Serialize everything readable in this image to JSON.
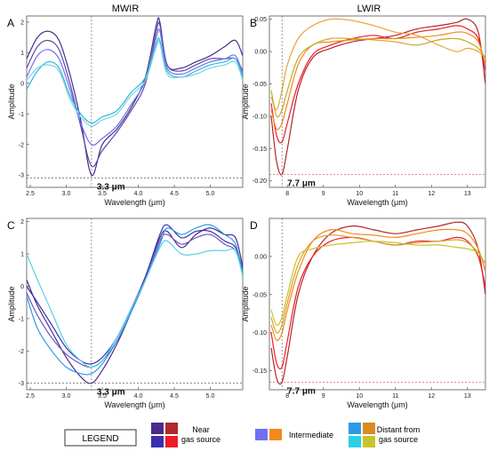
{
  "column_titles": [
    "MWIR",
    "LWIR"
  ],
  "legend": {
    "title": "LEGEND",
    "groups": [
      {
        "label_lines": [
          "Near",
          "gas source"
        ],
        "colors": [
          "#4a2a8a",
          "#b3262c",
          "#3b2fb0",
          "#ee1c24"
        ]
      },
      {
        "label_lines": [
          "Intermediate"
        ],
        "colors": [
          "#6f6ff0",
          "#f28a1a"
        ]
      },
      {
        "label_lines": [
          "Distant from",
          "gas source"
        ],
        "colors": [
          "#2c9be6",
          "#d98c1f",
          "#2ad0e6",
          "#c8c42a"
        ]
      }
    ]
  },
  "chart_data": [
    {
      "panel": "A",
      "type": "line",
      "xlabel": "Wavelength (μm)",
      "ylabel": "Amplitude",
      "xlim": [
        2.45,
        5.45
      ],
      "ylim": [
        -3.4,
        2.2
      ],
      "xticks": [
        2.5,
        3.0,
        3.5,
        4.0,
        4.5,
        5.0
      ],
      "xtick_labels": [
        "2.5",
        "3.0",
        "3.5",
        "4.0",
        "4.5",
        "5.0"
      ],
      "yticks": [
        -3,
        -2,
        -1,
        0,
        1,
        2
      ],
      "ytick_labels": [
        "-3",
        "-2",
        "-1",
        "0",
        "1",
        "2"
      ],
      "annotation": {
        "text": "3.3 μm",
        "x": 3.35,
        "y": -3.1
      },
      "series": [
        {
          "color": "#4a2a8a",
          "x": [
            2.45,
            2.6,
            2.75,
            2.9,
            3.05,
            3.2,
            3.35,
            3.5,
            3.7,
            3.9,
            4.1,
            4.25,
            4.3,
            4.4,
            4.6,
            4.8,
            5.0,
            5.2,
            5.35,
            5.45
          ],
          "y": [
            0.8,
            1.5,
            1.7,
            1.4,
            0.3,
            -1.2,
            -3.0,
            -2.0,
            -1.5,
            -0.8,
            0.2,
            1.9,
            2.0,
            0.6,
            0.5,
            0.7,
            0.9,
            1.2,
            1.4,
            0.9
          ]
        },
        {
          "color": "#5a4aa8",
          "x": [
            2.45,
            2.6,
            2.75,
            2.9,
            3.05,
            3.2,
            3.35,
            3.5,
            3.7,
            3.9,
            4.1,
            4.25,
            4.3,
            4.4,
            4.6,
            4.8,
            5.0,
            5.2,
            5.35,
            5.45
          ],
          "y": [
            0.5,
            1.2,
            1.4,
            1.1,
            0.0,
            -1.4,
            -2.7,
            -2.2,
            -1.6,
            -0.9,
            0.0,
            1.7,
            1.9,
            0.6,
            0.4,
            0.6,
            0.8,
            0.8,
            0.8,
            0.4
          ]
        },
        {
          "color": "#6f6ff0",
          "x": [
            2.45,
            2.6,
            2.75,
            2.9,
            3.05,
            3.2,
            3.35,
            3.5,
            3.7,
            3.9,
            4.1,
            4.25,
            4.3,
            4.4,
            4.6,
            4.8,
            5.0,
            5.2,
            5.35,
            5.45
          ],
          "y": [
            0.2,
            0.9,
            1.1,
            0.8,
            -0.2,
            -1.3,
            -2.0,
            -1.8,
            -1.4,
            -0.7,
            0.1,
            1.5,
            1.7,
            0.5,
            0.3,
            0.5,
            0.7,
            0.8,
            0.9,
            0.3
          ]
        },
        {
          "color": "#2ab8d8",
          "x": [
            2.45,
            2.6,
            2.75,
            2.9,
            3.05,
            3.2,
            3.35,
            3.5,
            3.7,
            3.9,
            4.1,
            4.25,
            4.3,
            4.4,
            4.6,
            4.8,
            5.0,
            5.2,
            5.35,
            5.45
          ],
          "y": [
            -0.2,
            0.4,
            0.7,
            0.5,
            -0.4,
            -1.0,
            -1.3,
            -1.1,
            -0.9,
            -0.3,
            0.2,
            1.3,
            1.4,
            0.4,
            0.2,
            0.4,
            0.6,
            0.7,
            0.8,
            0.2
          ]
        },
        {
          "color": "#7fd2e0",
          "x": [
            2.45,
            2.6,
            2.75,
            2.9,
            3.05,
            3.2,
            3.35,
            3.5,
            3.7,
            3.9,
            4.1,
            4.25,
            4.3,
            4.4,
            4.6,
            4.8,
            5.0,
            5.2,
            5.35,
            5.45
          ],
          "y": [
            0.1,
            0.5,
            0.6,
            0.4,
            -0.5,
            -1.1,
            -1.4,
            -1.2,
            -1.0,
            -0.4,
            0.1,
            1.2,
            1.3,
            0.3,
            0.2,
            0.3,
            0.5,
            0.6,
            0.7,
            0.1
          ]
        }
      ]
    },
    {
      "panel": "B",
      "type": "line",
      "xlabel": "Wavelength (μm)",
      "ylabel": "Amplitude",
      "xlim": [
        7.5,
        13.5
      ],
      "ylim": [
        -0.21,
        0.055
      ],
      "xticks": [
        8,
        9,
        10,
        11,
        12,
        13
      ],
      "xtick_labels": [
        "8",
        "9",
        "10",
        "11",
        "12",
        "13"
      ],
      "yticks": [
        -0.2,
        -0.15,
        -0.1,
        -0.05,
        0.0,
        0.05
      ],
      "ytick_labels": [
        "-0.20",
        "-0.15",
        "-0.10",
        "-0.05",
        "0.00",
        "0.05"
      ],
      "annotation": {
        "text": "7.7 μm",
        "x": 7.85,
        "y": -0.19
      },
      "series": [
        {
          "color": "#b3262c",
          "x": [
            7.55,
            7.7,
            7.85,
            8.0,
            8.3,
            8.7,
            9.2,
            9.8,
            10.4,
            11.0,
            11.6,
            12.2,
            12.7,
            13.0,
            13.3,
            13.5
          ],
          "y": [
            -0.1,
            -0.17,
            -0.19,
            -0.15,
            -0.06,
            -0.01,
            0.005,
            0.015,
            0.02,
            0.025,
            0.035,
            0.04,
            0.045,
            0.05,
            0.03,
            -0.05
          ]
        },
        {
          "color": "#ee1c24",
          "x": [
            7.55,
            7.7,
            7.85,
            8.0,
            8.3,
            8.7,
            9.2,
            9.8,
            10.4,
            11.0,
            11.6,
            12.2,
            12.7,
            13.0,
            13.3,
            13.5
          ],
          "y": [
            -0.08,
            -0.13,
            -0.14,
            -0.11,
            -0.05,
            -0.005,
            0.01,
            0.02,
            0.025,
            0.02,
            0.03,
            0.035,
            0.04,
            0.035,
            0.02,
            -0.03
          ]
        },
        {
          "color": "#f28a1a",
          "x": [
            7.55,
            7.7,
            7.85,
            8.0,
            8.3,
            8.7,
            9.2,
            9.8,
            10.4,
            11.0,
            11.6,
            12.2,
            12.7,
            13.0,
            13.3,
            13.5
          ],
          "y": [
            -0.09,
            -0.12,
            -0.11,
            -0.08,
            -0.02,
            0.01,
            0.015,
            0.018,
            0.02,
            0.02,
            0.022,
            0.025,
            0.03,
            0.028,
            0.015,
            -0.02
          ]
        },
        {
          "color": "#e8a33a",
          "x": [
            7.55,
            7.7,
            7.85,
            8.0,
            8.3,
            8.7,
            9.2,
            9.8,
            10.4,
            11.0,
            11.6,
            12.2,
            12.7,
            13.0,
            13.3,
            13.5
          ],
          "y": [
            -0.07,
            -0.09,
            -0.06,
            -0.02,
            0.02,
            0.04,
            0.05,
            0.048,
            0.04,
            0.03,
            0.025,
            0.01,
            0.0,
            0.005,
            0.0,
            -0.01
          ]
        },
        {
          "color": "#c8a82a",
          "x": [
            7.55,
            7.7,
            7.85,
            8.0,
            8.3,
            8.7,
            9.2,
            9.8,
            10.4,
            11.0,
            11.6,
            12.2,
            12.7,
            13.0,
            13.3,
            13.5
          ],
          "y": [
            -0.06,
            -0.1,
            -0.09,
            -0.06,
            -0.01,
            0.01,
            0.02,
            0.02,
            0.018,
            0.015,
            0.01,
            0.018,
            0.02,
            0.015,
            0.005,
            -0.01
          ]
        }
      ]
    },
    {
      "panel": "C",
      "type": "line",
      "xlabel": "Wavelength (μm)",
      "ylabel": "Amplitude",
      "xlim": [
        2.45,
        5.45
      ],
      "ylim": [
        -3.2,
        2.1
      ],
      "xticks": [
        2.5,
        3.0,
        3.5,
        4.0,
        4.5,
        5.0
      ],
      "xtick_labels": [
        "2.5",
        "3.0",
        "3.5",
        "4.0",
        "4.5",
        "5.0"
      ],
      "yticks": [
        -3,
        -2,
        -1,
        0,
        1,
        2
      ],
      "ytick_labels": [
        "-3",
        "-2",
        "-1",
        "0",
        "1",
        "2"
      ],
      "annotation": {
        "text": "3.3 μm",
        "x": 3.35,
        "y": -3.0
      },
      "series": [
        {
          "color": "#4a2a8a",
          "x": [
            2.45,
            2.6,
            2.8,
            3.0,
            3.2,
            3.35,
            3.5,
            3.7,
            3.9,
            4.1,
            4.3,
            4.4,
            4.6,
            4.8,
            5.0,
            5.2,
            5.35,
            5.45
          ],
          "y": [
            0.2,
            -0.6,
            -1.4,
            -2.2,
            -2.8,
            -3.0,
            -2.6,
            -1.8,
            -0.8,
            0.3,
            1.5,
            1.7,
            1.2,
            1.6,
            1.8,
            1.6,
            1.5,
            0.6
          ]
        },
        {
          "color": "#3b2fb0",
          "x": [
            2.45,
            2.6,
            2.8,
            3.0,
            3.2,
            3.35,
            3.5,
            3.7,
            3.9,
            4.1,
            4.3,
            4.4,
            4.6,
            4.8,
            5.0,
            5.2,
            5.35,
            5.45
          ],
          "y": [
            0.0,
            -0.5,
            -1.2,
            -1.9,
            -2.3,
            -2.4,
            -2.2,
            -1.6,
            -0.7,
            0.3,
            1.6,
            1.9,
            1.5,
            1.7,
            1.7,
            1.4,
            1.2,
            0.5
          ]
        },
        {
          "color": "#6a5ac0",
          "x": [
            2.45,
            2.6,
            2.8,
            3.0,
            3.2,
            3.35,
            3.5,
            3.7,
            3.9,
            4.1,
            4.3,
            4.4,
            4.6,
            4.8,
            5.0,
            5.2,
            5.35,
            5.45
          ],
          "y": [
            -0.2,
            -0.9,
            -1.6,
            -2.1,
            -2.4,
            -2.5,
            -2.3,
            -1.7,
            -0.8,
            0.2,
            1.4,
            1.6,
            1.3,
            1.5,
            1.6,
            1.3,
            1.1,
            0.4
          ]
        },
        {
          "color": "#2c9be6",
          "x": [
            2.45,
            2.6,
            2.8,
            3.0,
            3.2,
            3.35,
            3.5,
            3.7,
            3.9,
            4.1,
            4.3,
            4.4,
            4.6,
            4.8,
            5.0,
            5.2,
            5.35,
            5.45
          ],
          "y": [
            -0.3,
            -1.3,
            -2.0,
            -2.5,
            -2.7,
            -2.7,
            -2.4,
            -1.7,
            -0.8,
            0.2,
            1.3,
            1.8,
            1.6,
            1.8,
            1.9,
            1.6,
            1.3,
            0.4
          ]
        },
        {
          "color": "#5ad0e6",
          "x": [
            2.45,
            2.6,
            2.8,
            3.0,
            3.2,
            3.35,
            3.5,
            3.7,
            3.9,
            4.1,
            4.3,
            4.4,
            4.6,
            4.8,
            5.0,
            5.2,
            5.35,
            5.45
          ],
          "y": [
            1.0,
            0.2,
            -0.8,
            -1.8,
            -2.3,
            -2.5,
            -2.3,
            -1.6,
            -0.7,
            0.2,
            1.2,
            1.4,
            1.0,
            1.0,
            1.1,
            1.1,
            1.1,
            0.3
          ]
        }
      ]
    },
    {
      "panel": "D",
      "type": "line",
      "xlabel": "Wavelength (μm)",
      "ylabel": "Amplitude",
      "xlim": [
        7.5,
        13.5
      ],
      "ylim": [
        -0.175,
        0.05
      ],
      "xticks": [
        8,
        9,
        10,
        11,
        12,
        13
      ],
      "xtick_labels": [
        "8",
        "9",
        "10",
        "11",
        "12",
        "13"
      ],
      "yticks": [
        -0.15,
        -0.1,
        -0.05,
        0.0
      ],
      "ytick_labels": [
        "-0.15",
        "-0.10",
        "-0.05",
        "0.00"
      ],
      "annotation": {
        "text": "7.7 μm",
        "x": 7.85,
        "y": -0.165
      },
      "series": [
        {
          "color": "#b3262c",
          "x": [
            7.55,
            7.7,
            7.85,
            8.0,
            8.3,
            8.7,
            9.2,
            9.8,
            10.4,
            11.0,
            11.6,
            12.2,
            12.7,
            13.0,
            13.3,
            13.5
          ],
          "y": [
            -0.12,
            -0.16,
            -0.165,
            -0.13,
            -0.05,
            0.0,
            0.03,
            0.04,
            0.035,
            0.03,
            0.035,
            0.04,
            0.045,
            0.04,
            0.01,
            -0.05
          ]
        },
        {
          "color": "#ee1c24",
          "x": [
            7.55,
            7.7,
            7.85,
            8.0,
            8.3,
            8.7,
            9.2,
            9.8,
            10.4,
            11.0,
            11.6,
            12.2,
            12.7,
            13.0,
            13.3,
            13.5
          ],
          "y": [
            -0.1,
            -0.14,
            -0.145,
            -0.11,
            -0.04,
            0.0,
            0.02,
            0.025,
            0.02,
            0.015,
            0.02,
            0.02,
            0.025,
            0.02,
            0.0,
            -0.04
          ]
        },
        {
          "color": "#f28a1a",
          "x": [
            7.55,
            7.7,
            7.85,
            8.0,
            8.3,
            8.7,
            9.2,
            9.8,
            10.4,
            11.0,
            11.6,
            12.2,
            12.7,
            13.0,
            13.3,
            13.5
          ],
          "y": [
            -0.09,
            -0.11,
            -0.1,
            -0.07,
            -0.02,
            0.02,
            0.035,
            0.03,
            0.028,
            0.025,
            0.03,
            0.035,
            0.035,
            0.03,
            0.01,
            -0.02
          ]
        },
        {
          "color": "#d9a02a",
          "x": [
            7.55,
            7.7,
            7.85,
            8.0,
            8.3,
            8.7,
            9.2,
            9.8,
            10.4,
            11.0,
            11.6,
            12.2,
            12.7,
            13.0,
            13.3,
            13.5
          ],
          "y": [
            -0.08,
            -0.1,
            -0.09,
            -0.06,
            -0.01,
            0.02,
            0.028,
            0.025,
            0.02,
            0.015,
            0.018,
            0.02,
            0.022,
            0.018,
            0.005,
            -0.01
          ]
        },
        {
          "color": "#c8c42a",
          "x": [
            7.55,
            7.7,
            7.85,
            8.0,
            8.3,
            8.7,
            9.2,
            9.8,
            10.4,
            11.0,
            11.6,
            12.2,
            12.7,
            13.0,
            13.3,
            13.5
          ],
          "y": [
            -0.07,
            -0.09,
            -0.08,
            -0.05,
            0.0,
            0.01,
            0.015,
            0.018,
            0.02,
            0.018,
            0.015,
            0.015,
            0.012,
            0.01,
            0.005,
            -0.01
          ]
        }
      ]
    }
  ]
}
